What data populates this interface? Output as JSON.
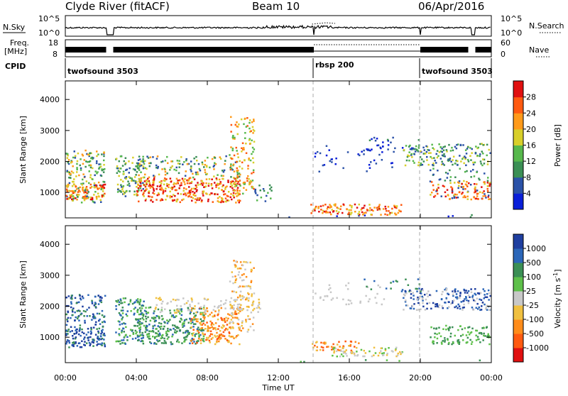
{
  "header": {
    "station": "Clyde River (fitACF)",
    "beam": "Beam 10",
    "date": "06/Apr/2016"
  },
  "noise_panel": {
    "left_label": "N.Sky",
    "right_label": "N.Search",
    "left_ticks": [
      "10^5",
      "10^0"
    ],
    "right_ticks": [
      "10^5",
      "10^0"
    ]
  },
  "freq_panel": {
    "left_label_line1": "Freq.",
    "left_label_line2": "[MHz]",
    "right_label": "Nave",
    "left_ticks": [
      "18",
      "8"
    ],
    "right_ticks": [
      "60",
      "0"
    ]
  },
  "cpid": {
    "label": "CPID",
    "segments": [
      {
        "name": "twofsound 3503",
        "start_hour": 0
      },
      {
        "name": "rbsp 200",
        "start_hour": 14
      },
      {
        "name": "twofsound 3503",
        "start_hour": 20
      }
    ]
  },
  "colors": {
    "power_scale": [
      "#0a1fd9",
      "#2b52a8",
      "#3b8f55",
      "#57b84c",
      "#d8cf2a",
      "#ff9a1a",
      "#ff5a10",
      "#e01010"
    ],
    "velocity_scale": [
      "#e01010",
      "#ff5a10",
      "#ff8c1a",
      "#f0c040",
      "#c8c8c8",
      "#5ec04a",
      "#3b8f55",
      "#2b66b8",
      "#1f3fa0"
    ]
  },
  "chart_data": [
    {
      "type": "heatmap",
      "title": "Power",
      "ylabel": "Slant Range [km]",
      "xlabel": "Time UT",
      "xlim_hours": [
        0,
        24
      ],
      "ylim": [
        180,
        4600
      ],
      "y_ticks": [
        "1000",
        "2000",
        "3000",
        "4000"
      ],
      "x_ticks": [
        "00:00",
        "04:00",
        "08:00",
        "12:00",
        "16:00",
        "20:00",
        "00:00"
      ],
      "colorbar": {
        "label": "Power [dB]",
        "ticks": [
          "28",
          "24",
          "20",
          "16",
          "12",
          "8",
          "4"
        ]
      }
    },
    {
      "type": "heatmap",
      "title": "Velocity",
      "ylabel": "Slant Range [km]",
      "xlabel": "Time UT",
      "xlim_hours": [
        0,
        24
      ],
      "ylim": [
        180,
        4600
      ],
      "y_ticks": [
        "1000",
        "2000",
        "3000",
        "4000"
      ],
      "x_ticks": [
        "00:00",
        "04:00",
        "08:00",
        "12:00",
        "16:00",
        "20:00",
        "00:00"
      ],
      "colorbar": {
        "label_main": "Velocity",
        "label_unit": "[m s",
        "label_exp": "-1",
        "ticks": [
          "1000",
          "500",
          "100",
          "25",
          "-25",
          "-100",
          "-500",
          "-1000"
        ]
      }
    }
  ]
}
